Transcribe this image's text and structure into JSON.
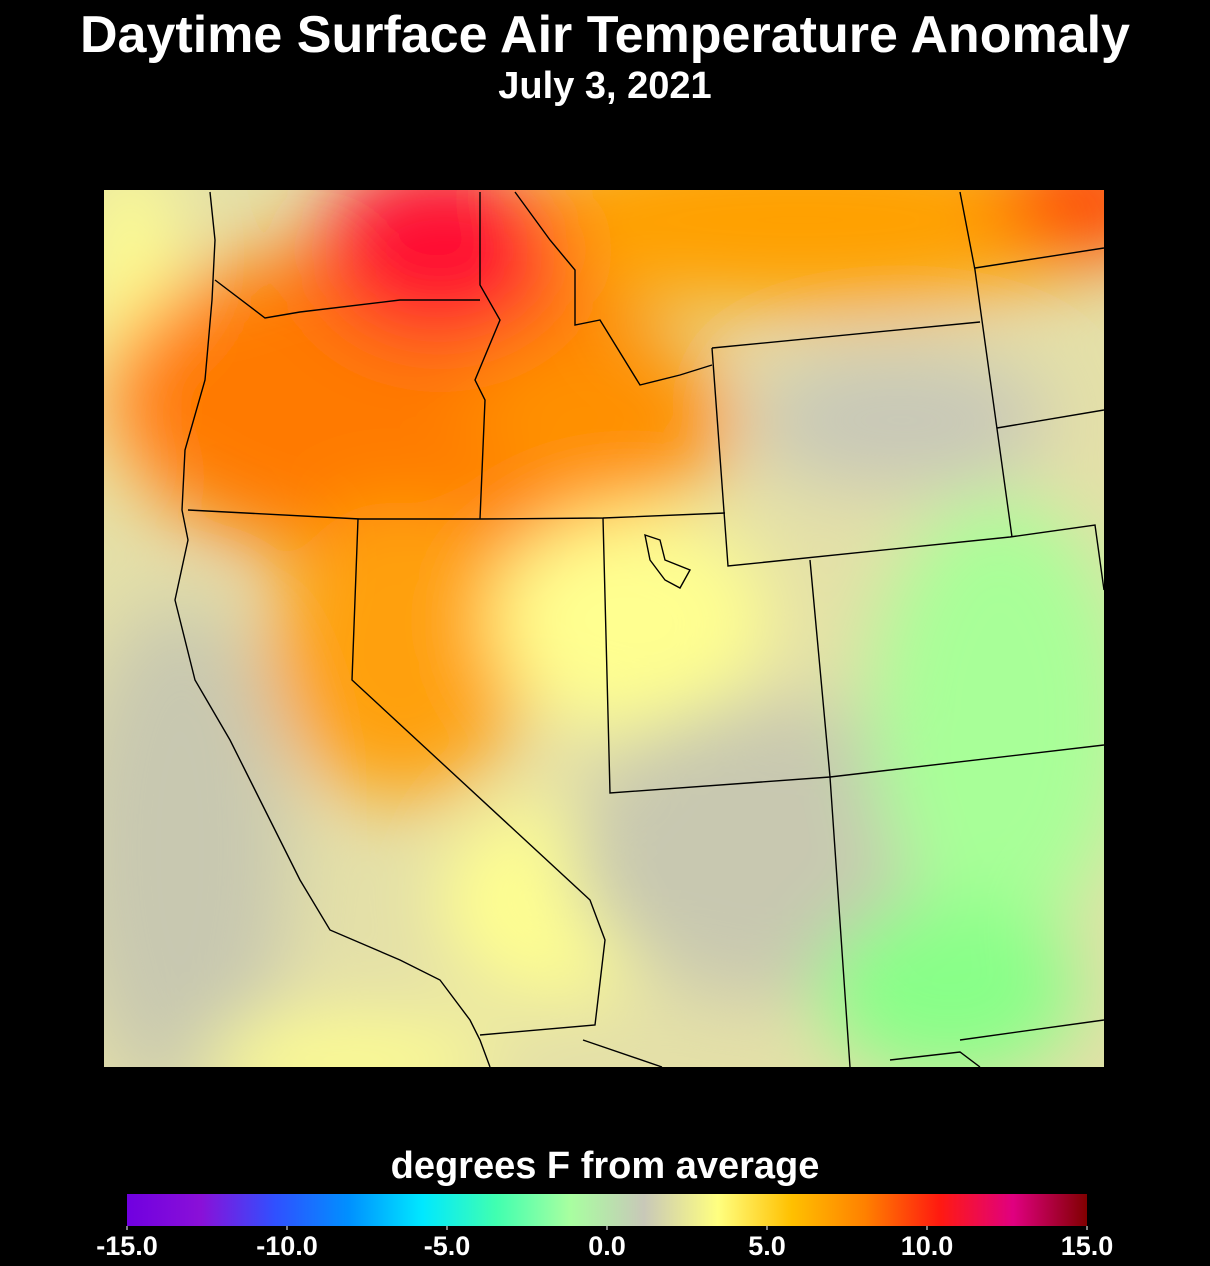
{
  "title": "Daytime Surface Air Temperature Anomaly",
  "subtitle": "July 3, 2021",
  "colorbar": {
    "label": "degrees F from average",
    "lim": [
      -15,
      15
    ],
    "ticks": [
      {
        "value": -15,
        "label": "-15.0"
      },
      {
        "value": -10,
        "label": "-10.0"
      },
      {
        "value": -5,
        "label": "-5.0"
      },
      {
        "value": 0,
        "label": "0.0"
      },
      {
        "value": 5,
        "label": "5.0"
      },
      {
        "value": 10,
        "label": "10.0"
      },
      {
        "value": 15,
        "label": "15.0"
      }
    ],
    "colors": [
      "#7000e0",
      "#8a10d8",
      "#3050ff",
      "#0090ff",
      "#00e8ff",
      "#40ffb0",
      "#a8ffa0",
      "#c8c8b8",
      "#ffff80",
      "#ffc000",
      "#ff8000",
      "#ff1a10",
      "#e00080",
      "#800000"
    ]
  }
}
